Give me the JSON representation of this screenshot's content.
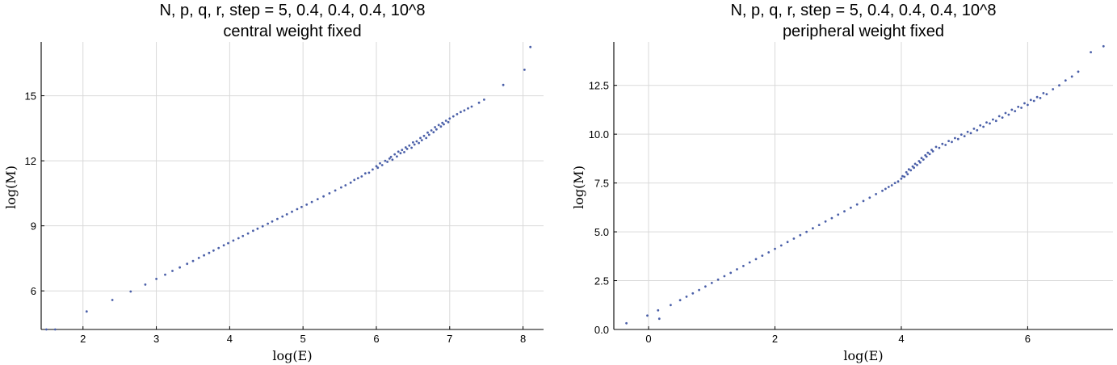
{
  "chart_data": [
    {
      "type": "scatter",
      "title": "N, p, q, r, step = 5, 0.4, 0.4, 0.4, 10^8",
      "subtitle": "central weight fixed",
      "xlabel": "log(E)",
      "ylabel": "log(M)",
      "xlim": [
        1.43,
        8.28
      ],
      "ylim": [
        4.22,
        17.48
      ],
      "xticks": [
        "2",
        "3",
        "4",
        "5",
        "6",
        "7",
        "8"
      ],
      "yticks": [
        "6",
        "9",
        "12",
        "15"
      ],
      "grid": true,
      "color": "#4a5fa8",
      "series": [
        {
          "points": [
            [
              1.5,
              4.22
            ],
            [
              1.62,
              4.22
            ],
            [
              2.05,
              5.05
            ],
            [
              2.4,
              5.58
            ],
            [
              2.65,
              5.97
            ],
            [
              2.85,
              6.29
            ],
            [
              3.0,
              6.55
            ],
            [
              3.12,
              6.75
            ],
            [
              3.22,
              6.92
            ],
            [
              3.32,
              7.08
            ],
            [
              3.42,
              7.25
            ],
            [
              3.5,
              7.38
            ],
            [
              3.58,
              7.52
            ],
            [
              3.65,
              7.64
            ],
            [
              3.72,
              7.75
            ],
            [
              3.78,
              7.86
            ],
            [
              3.85,
              7.98
            ],
            [
              3.92,
              8.1
            ],
            [
              3.98,
              8.2
            ],
            [
              4.05,
              8.32
            ],
            [
              4.12,
              8.43
            ],
            [
              4.18,
              8.53
            ],
            [
              4.25,
              8.65
            ],
            [
              4.32,
              8.77
            ],
            [
              4.38,
              8.87
            ],
            [
              4.45,
              8.98
            ],
            [
              4.52,
              9.1
            ],
            [
              4.58,
              9.2
            ],
            [
              4.65,
              9.32
            ],
            [
              4.72,
              9.43
            ],
            [
              4.78,
              9.53
            ],
            [
              4.85,
              9.65
            ],
            [
              4.92,
              9.77
            ],
            [
              4.98,
              9.87
            ],
            [
              5.05,
              9.98
            ],
            [
              5.12,
              10.1
            ],
            [
              5.2,
              10.23
            ],
            [
              5.28,
              10.36
            ],
            [
              5.36,
              10.5
            ],
            [
              5.44,
              10.63
            ],
            [
              5.52,
              10.77
            ],
            [
              5.58,
              10.87
            ],
            [
              5.65,
              10.99
            ],
            [
              5.7,
              11.12
            ],
            [
              5.75,
              11.2
            ],
            [
              5.8,
              11.28
            ],
            [
              5.85,
              11.42
            ],
            [
              5.9,
              11.45
            ],
            [
              5.95,
              11.6
            ],
            [
              6.0,
              11.75
            ],
            [
              6.02,
              11.68
            ],
            [
              6.05,
              11.88
            ],
            [
              6.08,
              11.8
            ],
            [
              6.12,
              12.0
            ],
            [
              6.15,
              11.95
            ],
            [
              6.18,
              12.1
            ],
            [
              6.2,
              12.18
            ],
            [
              6.22,
              12.05
            ],
            [
              6.25,
              12.3
            ],
            [
              6.28,
              12.2
            ],
            [
              6.3,
              12.42
            ],
            [
              6.33,
              12.35
            ],
            [
              6.35,
              12.5
            ],
            [
              6.38,
              12.4
            ],
            [
              6.4,
              12.62
            ],
            [
              6.42,
              12.55
            ],
            [
              6.45,
              12.7
            ],
            [
              6.48,
              12.6
            ],
            [
              6.5,
              12.85
            ],
            [
              6.52,
              12.75
            ],
            [
              6.55,
              12.9
            ],
            [
              6.58,
              12.82
            ],
            [
              6.6,
              13.05
            ],
            [
              6.62,
              12.95
            ],
            [
              6.65,
              13.15
            ],
            [
              6.68,
              13.05
            ],
            [
              6.7,
              13.3
            ],
            [
              6.72,
              13.2
            ],
            [
              6.75,
              13.4
            ],
            [
              6.78,
              13.32
            ],
            [
              6.8,
              13.55
            ],
            [
              6.82,
              13.45
            ],
            [
              6.85,
              13.65
            ],
            [
              6.88,
              13.58
            ],
            [
              6.9,
              13.75
            ],
            [
              6.92,
              13.68
            ],
            [
              6.95,
              13.85
            ],
            [
              6.98,
              13.78
            ],
            [
              7.0,
              13.95
            ],
            [
              7.05,
              14.05
            ],
            [
              7.1,
              14.15
            ],
            [
              7.15,
              14.25
            ],
            [
              7.2,
              14.32
            ],
            [
              7.25,
              14.42
            ],
            [
              7.3,
              14.5
            ],
            [
              7.4,
              14.68
            ],
            [
              7.47,
              14.82
            ],
            [
              7.73,
              15.5
            ],
            [
              8.02,
              16.2
            ],
            [
              8.1,
              17.25
            ]
          ]
        }
      ]
    },
    {
      "type": "scatter",
      "title": "N, p, q, r, step = 5, 0.4, 0.4, 0.4, 10^8",
      "subtitle": "peripheral weight fixed",
      "xlabel": "log(E)",
      "ylabel": "log(M)",
      "xlim": [
        -0.55,
        7.35
      ],
      "ylim": [
        0.0,
        14.72
      ],
      "xticks": [
        "0",
        "2",
        "4",
        "6"
      ],
      "yticks": [
        "0.0",
        "2.5",
        "5.0",
        "7.5",
        "10.0",
        "12.5"
      ],
      "grid": true,
      "color": "#4a5fa8",
      "series": [
        {
          "points": [
            [
              -0.35,
              0.32
            ],
            [
              -0.02,
              0.71
            ],
            [
              0.15,
              0.98
            ],
            [
              0.17,
              0.55
            ],
            [
              0.35,
              1.25
            ],
            [
              0.5,
              1.5
            ],
            [
              0.6,
              1.68
            ],
            [
              0.7,
              1.85
            ],
            [
              0.8,
              2.02
            ],
            [
              0.9,
              2.2
            ],
            [
              1.0,
              2.38
            ],
            [
              1.1,
              2.55
            ],
            [
              1.2,
              2.73
            ],
            [
              1.3,
              2.9
            ],
            [
              1.4,
              3.08
            ],
            [
              1.5,
              3.25
            ],
            [
              1.6,
              3.43
            ],
            [
              1.7,
              3.6
            ],
            [
              1.8,
              3.78
            ],
            [
              1.9,
              3.95
            ],
            [
              2.0,
              4.13
            ],
            [
              2.1,
              4.3
            ],
            [
              2.2,
              4.48
            ],
            [
              2.3,
              4.65
            ],
            [
              2.4,
              4.83
            ],
            [
              2.5,
              5.0
            ],
            [
              2.6,
              5.18
            ],
            [
              2.7,
              5.35
            ],
            [
              2.8,
              5.53
            ],
            [
              2.9,
              5.7
            ],
            [
              3.0,
              5.88
            ],
            [
              3.1,
              6.05
            ],
            [
              3.2,
              6.23
            ],
            [
              3.3,
              6.4
            ],
            [
              3.4,
              6.58
            ],
            [
              3.5,
              6.75
            ],
            [
              3.6,
              6.93
            ],
            [
              3.7,
              7.1
            ],
            [
              3.75,
              7.2
            ],
            [
              3.8,
              7.3
            ],
            [
              3.85,
              7.38
            ],
            [
              3.9,
              7.5
            ],
            [
              3.95,
              7.58
            ],
            [
              4.0,
              7.72
            ],
            [
              4.02,
              7.85
            ],
            [
              4.05,
              7.82
            ],
            [
              4.08,
              8.05
            ],
            [
              4.1,
              7.95
            ],
            [
              4.12,
              8.2
            ],
            [
              4.15,
              8.15
            ],
            [
              4.18,
              8.35
            ],
            [
              4.2,
              8.28
            ],
            [
              4.22,
              8.48
            ],
            [
              4.25,
              8.42
            ],
            [
              4.28,
              8.62
            ],
            [
              4.3,
              8.55
            ],
            [
              4.32,
              8.78
            ],
            [
              4.35,
              8.7
            ],
            [
              4.38,
              8.92
            ],
            [
              4.4,
              8.85
            ],
            [
              4.42,
              9.05
            ],
            [
              4.45,
              8.98
            ],
            [
              4.48,
              9.2
            ],
            [
              4.5,
              9.12
            ],
            [
              4.55,
              9.35
            ],
            [
              4.6,
              9.3
            ],
            [
              4.65,
              9.5
            ],
            [
              4.7,
              9.45
            ],
            [
              4.75,
              9.65
            ],
            [
              4.8,
              9.6
            ],
            [
              4.85,
              9.8
            ],
            [
              4.9,
              9.75
            ],
            [
              4.95,
              9.98
            ],
            [
              5.0,
              9.9
            ],
            [
              5.05,
              10.12
            ],
            [
              5.1,
              10.05
            ],
            [
              5.15,
              10.28
            ],
            [
              5.2,
              10.2
            ],
            [
              5.25,
              10.45
            ],
            [
              5.3,
              10.38
            ],
            [
              5.35,
              10.6
            ],
            [
              5.4,
              10.55
            ],
            [
              5.45,
              10.75
            ],
            [
              5.5,
              10.68
            ],
            [
              5.55,
              10.92
            ],
            [
              5.6,
              10.85
            ],
            [
              5.65,
              11.08
            ],
            [
              5.7,
              11.0
            ],
            [
              5.75,
              11.25
            ],
            [
              5.8,
              11.18
            ],
            [
              5.85,
              11.4
            ],
            [
              5.9,
              11.35
            ],
            [
              5.95,
              11.58
            ],
            [
              6.0,
              11.5
            ],
            [
              6.05,
              11.75
            ],
            [
              6.1,
              11.7
            ],
            [
              6.15,
              11.9
            ],
            [
              6.2,
              11.85
            ],
            [
              6.25,
              12.1
            ],
            [
              6.3,
              12.05
            ],
            [
              6.4,
              12.3
            ],
            [
              6.5,
              12.5
            ],
            [
              6.6,
              12.75
            ],
            [
              6.7,
              12.95
            ],
            [
              6.8,
              13.2
            ],
            [
              7.0,
              14.2
            ],
            [
              7.2,
              14.5
            ]
          ]
        }
      ]
    }
  ]
}
